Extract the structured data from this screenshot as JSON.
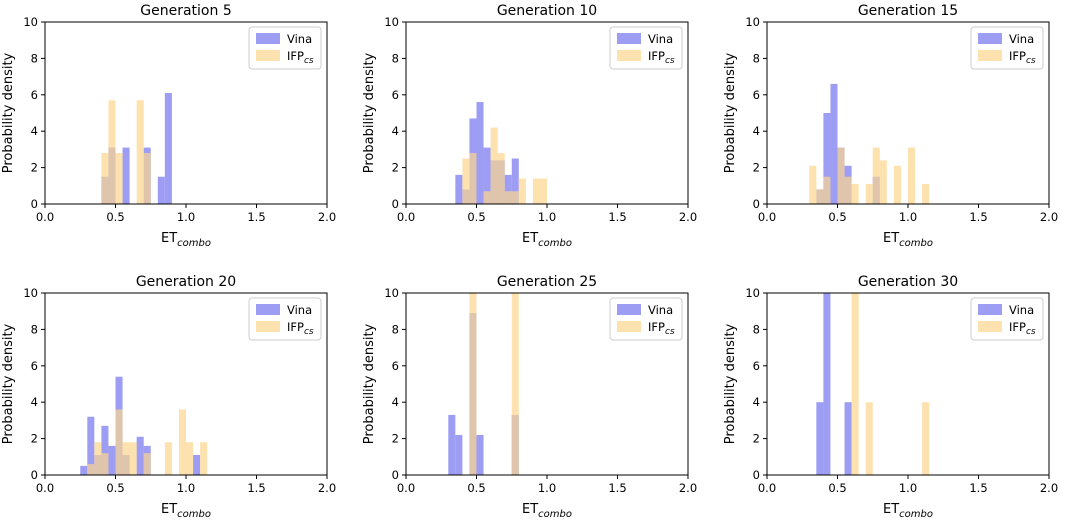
{
  "chart_data": [
    {
      "type": "histogram",
      "title": "Generation 5",
      "xlabel_base": "ET",
      "xlabel_sub": "combo",
      "ylabel": "Probability density",
      "xlim": [
        0,
        2
      ],
      "ylim": [
        0,
        10
      ],
      "xticks": [
        "0.0",
        "0.5",
        "1.0",
        "1.5",
        "2.0"
      ],
      "yticks": [
        "0",
        "2",
        "4",
        "6",
        "8",
        "10"
      ],
      "bin_width": 0.05,
      "series": [
        {
          "name": "Vina",
          "label_base": "Vina",
          "label_sub": "",
          "color": "#8c8cf2",
          "bins": [
            [
              0.4,
              1.5
            ],
            [
              0.45,
              3.1
            ],
            [
              0.55,
              3.1
            ],
            [
              0.7,
              3.1
            ],
            [
              0.8,
              1.5
            ],
            [
              0.85,
              6.1
            ]
          ]
        },
        {
          "name": "IFPcs",
          "label_base": "IFP",
          "label_sub": "cs",
          "color": "#fcd68e",
          "bins": [
            [
              0.4,
              2.8
            ],
            [
              0.45,
              5.7
            ],
            [
              0.5,
              2.8
            ],
            [
              0.65,
              5.7
            ],
            [
              0.7,
              2.8
            ]
          ]
        }
      ]
    },
    {
      "type": "histogram",
      "title": "Generation 10",
      "xlabel_base": "ET",
      "xlabel_sub": "combo",
      "ylabel": "Probability density",
      "xlim": [
        0,
        2
      ],
      "ylim": [
        0,
        10
      ],
      "xticks": [
        "0.0",
        "0.5",
        "1.0",
        "1.5",
        "2.0"
      ],
      "yticks": [
        "0",
        "2",
        "4",
        "6",
        "8",
        "10"
      ],
      "bin_width": 0.05,
      "series": [
        {
          "name": "Vina",
          "label_base": "Vina",
          "label_sub": "",
          "color": "#8c8cf2",
          "bins": [
            [
              0.35,
              1.6
            ],
            [
              0.4,
              0.8
            ],
            [
              0.45,
              4.7
            ],
            [
              0.5,
              5.6
            ],
            [
              0.55,
              3.1
            ],
            [
              0.6,
              2.4
            ],
            [
              0.65,
              2.4
            ],
            [
              0.7,
              1.6
            ],
            [
              0.75,
              2.5
            ]
          ]
        },
        {
          "name": "IFPcs",
          "label_base": "IFP",
          "label_sub": "cs",
          "color": "#fcd68e",
          "bins": [
            [
              0.4,
              2.5
            ],
            [
              0.45,
              2.8
            ],
            [
              0.55,
              0.7
            ],
            [
              0.6,
              4.2
            ],
            [
              0.65,
              2.8
            ],
            [
              0.7,
              0.7
            ],
            [
              0.75,
              0.7
            ],
            [
              0.8,
              1.4
            ],
            [
              0.9,
              1.4
            ],
            [
              0.95,
              1.4
            ]
          ]
        }
      ]
    },
    {
      "type": "histogram",
      "title": "Generation 15",
      "xlabel_base": "ET",
      "xlabel_sub": "combo",
      "ylabel": "Probability density",
      "xlim": [
        0,
        2
      ],
      "ylim": [
        0,
        10
      ],
      "xticks": [
        "0.0",
        "0.5",
        "1.0",
        "1.5",
        "2.0"
      ],
      "yticks": [
        "0",
        "2",
        "4",
        "6",
        "8",
        "10"
      ],
      "bin_width": 0.05,
      "series": [
        {
          "name": "Vina",
          "label_base": "Vina",
          "label_sub": "",
          "color": "#8c8cf2",
          "bins": [
            [
              0.35,
              0.8
            ],
            [
              0.4,
              5.0
            ],
            [
              0.45,
              6.6
            ],
            [
              0.5,
              3.1
            ],
            [
              0.55,
              2.1
            ],
            [
              0.75,
              1.5
            ]
          ]
        },
        {
          "name": "IFPcs",
          "label_base": "IFP",
          "label_sub": "cs",
          "color": "#fcd68e",
          "bins": [
            [
              0.3,
              2.1
            ],
            [
              0.35,
              0.8
            ],
            [
              0.4,
              1.5
            ],
            [
              0.5,
              3.1
            ],
            [
              0.55,
              1.5
            ],
            [
              0.6,
              1.1
            ],
            [
              0.7,
              1.1
            ],
            [
              0.75,
              3.1
            ],
            [
              0.8,
              2.4
            ],
            [
              0.9,
              2.1
            ],
            [
              1.0,
              3.1
            ],
            [
              1.1,
              1.1
            ]
          ]
        }
      ]
    },
    {
      "type": "histogram",
      "title": "Generation 20",
      "xlabel_base": "ET",
      "xlabel_sub": "combo",
      "ylabel": "Probability density",
      "xlim": [
        0,
        2
      ],
      "ylim": [
        0,
        10
      ],
      "xticks": [
        "0.0",
        "0.5",
        "1.0",
        "1.5",
        "2.0"
      ],
      "yticks": [
        "0",
        "2",
        "4",
        "6",
        "8",
        "10"
      ],
      "bin_width": 0.05,
      "series": [
        {
          "name": "Vina",
          "label_base": "Vina",
          "label_sub": "",
          "color": "#8c8cf2",
          "bins": [
            [
              0.25,
              0.5
            ],
            [
              0.3,
              3.2
            ],
            [
              0.35,
              1.1
            ],
            [
              0.4,
              2.7
            ],
            [
              0.45,
              1.6
            ],
            [
              0.5,
              5.4
            ],
            [
              0.55,
              1.1
            ],
            [
              0.65,
              2.1
            ],
            [
              0.7,
              1.6
            ],
            [
              1.05,
              1.1
            ]
          ]
        },
        {
          "name": "IFPcs",
          "label_base": "IFP",
          "label_sub": "cs",
          "color": "#fcd68e",
          "bins": [
            [
              0.3,
              0.6
            ],
            [
              0.35,
              1.8
            ],
            [
              0.4,
              1.2
            ],
            [
              0.5,
              3.6
            ],
            [
              0.55,
              1.8
            ],
            [
              0.6,
              1.8
            ],
            [
              0.7,
              1.2
            ],
            [
              0.85,
              1.8
            ],
            [
              0.95,
              3.6
            ],
            [
              1.0,
              1.8
            ],
            [
              1.1,
              1.8
            ]
          ]
        }
      ]
    },
    {
      "type": "histogram",
      "title": "Generation 25",
      "xlabel_base": "ET",
      "xlabel_sub": "combo",
      "ylabel": "Probability density",
      "xlim": [
        0,
        2
      ],
      "ylim": [
        0,
        10
      ],
      "xticks": [
        "0.0",
        "0.5",
        "1.0",
        "1.5",
        "2.0"
      ],
      "yticks": [
        "0",
        "2",
        "4",
        "6",
        "8",
        "10"
      ],
      "bin_width": 0.05,
      "series": [
        {
          "name": "Vina",
          "label_base": "Vina",
          "label_sub": "",
          "color": "#8c8cf2",
          "bins": [
            [
              0.3,
              3.3
            ],
            [
              0.35,
              2.2
            ],
            [
              0.45,
              8.9
            ],
            [
              0.5,
              2.2
            ],
            [
              0.75,
              3.3
            ]
          ]
        },
        {
          "name": "IFPcs",
          "label_base": "IFP",
          "label_sub": "cs",
          "color": "#fcd68e",
          "bins": [
            [
              0.45,
              10
            ],
            [
              0.75,
              10
            ]
          ]
        }
      ]
    },
    {
      "type": "histogram",
      "title": "Generation 30",
      "xlabel_base": "ET",
      "xlabel_sub": "combo",
      "ylabel": "Probability density",
      "xlim": [
        0,
        2
      ],
      "ylim": [
        0,
        10
      ],
      "xticks": [
        "0.0",
        "0.5",
        "1.0",
        "1.5",
        "2.0"
      ],
      "yticks": [
        "0",
        "2",
        "4",
        "6",
        "8",
        "10"
      ],
      "bin_width": 0.05,
      "series": [
        {
          "name": "Vina",
          "label_base": "Vina",
          "label_sub": "",
          "color": "#8c8cf2",
          "bins": [
            [
              0.35,
              4.0
            ],
            [
              0.4,
              10
            ],
            [
              0.55,
              4.0
            ]
          ]
        },
        {
          "name": "IFPcs",
          "label_base": "IFP",
          "label_sub": "cs",
          "color": "#fcd68e",
          "bins": [
            [
              0.6,
              10
            ],
            [
              0.7,
              4.0
            ],
            [
              1.1,
              4.0
            ]
          ]
        }
      ]
    }
  ]
}
